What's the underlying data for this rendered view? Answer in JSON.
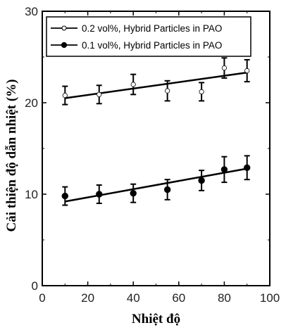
{
  "chart_data": {
    "type": "scatter",
    "xlabel": "Nhiệt độ",
    "ylabel": "Cải thiện độ dẫn nhiệt (%)",
    "xlim": [
      0,
      100
    ],
    "ylim": [
      0,
      30
    ],
    "x_ticks": [
      "0",
      "20",
      "40",
      "60",
      "80",
      "100"
    ],
    "y_ticks": [
      "0",
      "10",
      "20",
      "30"
    ],
    "legend_position": "top-left",
    "series": [
      {
        "name": "0.2 vol%, Hybrid Particles in PAO",
        "marker": "open-circle",
        "color": "#000000",
        "x": [
          10,
          25,
          40,
          55,
          70,
          80,
          90
        ],
        "y": [
          20.8,
          20.9,
          22.0,
          21.3,
          21.2,
          23.8,
          23.5
        ],
        "error": [
          1.0,
          1.0,
          1.1,
          1.1,
          1.0,
          1.1,
          1.2
        ],
        "fit": [
          [
            10,
            20.5
          ],
          [
            90,
            23.3
          ]
        ]
      },
      {
        "name": "0.1 vol%, Hybrid Particles in PAO",
        "marker": "filled-circle",
        "color": "#000000",
        "x": [
          10,
          25,
          40,
          55,
          70,
          80,
          90
        ],
        "y": [
          9.8,
          10.0,
          10.1,
          10.5,
          11.5,
          12.7,
          12.9
        ],
        "error": [
          1.0,
          1.0,
          1.0,
          1.1,
          1.1,
          1.4,
          1.3
        ],
        "fit": [
          [
            10,
            9.2
          ],
          [
            90,
            12.8
          ]
        ]
      }
    ]
  }
}
